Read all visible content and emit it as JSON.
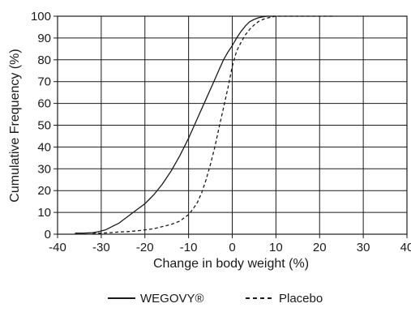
{
  "chart_data": {
    "type": "line",
    "title": "",
    "xlabel": "Change in body weight (%)",
    "ylabel": "Cumulative Frequency (%)",
    "xlim": [
      -40,
      40
    ],
    "ylim": [
      0,
      100
    ],
    "xticks": [
      -40,
      -30,
      -20,
      -10,
      0,
      10,
      20,
      30,
      40
    ],
    "yticks": [
      0,
      10,
      20,
      30,
      40,
      50,
      60,
      70,
      80,
      90,
      100
    ],
    "grid": true,
    "legend_position": "bottom",
    "series": [
      {
        "name": "WEGOVY®",
        "style": "solid",
        "color": "#1a1a1a",
        "x": [
          -36,
          -34,
          -32,
          -31,
          -30,
          -29,
          -28,
          -27,
          -26,
          -25,
          -24,
          -23,
          -22,
          -21,
          -20,
          -19,
          -18,
          -17,
          -16,
          -15,
          -14,
          -13,
          -12,
          -11,
          -10,
          -9,
          -8,
          -7,
          -6,
          -5,
          -4,
          -3,
          -2,
          -1,
          0,
          1,
          2,
          3,
          4,
          5,
          6,
          7,
          8,
          9,
          10
        ],
        "y": [
          0.5,
          0.5,
          0.7,
          1,
          1.5,
          2,
          3,
          4,
          5,
          6.5,
          8,
          9.5,
          11,
          12.5,
          14,
          16,
          18,
          20.5,
          23,
          26,
          29,
          32.5,
          36,
          40,
          44,
          48.5,
          53,
          57.5,
          62,
          66.5,
          71,
          75.5,
          80,
          83.5,
          86.5,
          90,
          93,
          95.5,
          97.5,
          98.5,
          99.3,
          99.7,
          100,
          100,
          100
        ]
      },
      {
        "name": "Placebo",
        "style": "dashed",
        "color": "#1a1a1a",
        "x": [
          -32,
          -30,
          -28,
          -26,
          -24,
          -22,
          -20,
          -18,
          -16,
          -14,
          -12,
          -11,
          -10,
          -9,
          -8,
          -7,
          -6,
          -5,
          -4,
          -3,
          -2,
          -1,
          0,
          1,
          2,
          3,
          4,
          5,
          6,
          7,
          8,
          9,
          10,
          12,
          15,
          18,
          20,
          23
        ],
        "y": [
          0.5,
          0.5,
          0.7,
          1,
          1.2,
          1.5,
          2,
          2.5,
          3.5,
          4.5,
          6,
          7.5,
          9,
          11.5,
          14.5,
          19,
          25,
          32,
          40,
          49,
          58,
          67,
          77,
          84,
          88,
          91.5,
          94,
          96,
          97.5,
          98.5,
          99.2,
          99.6,
          100,
          100,
          100,
          100,
          100,
          100
        ]
      }
    ]
  }
}
